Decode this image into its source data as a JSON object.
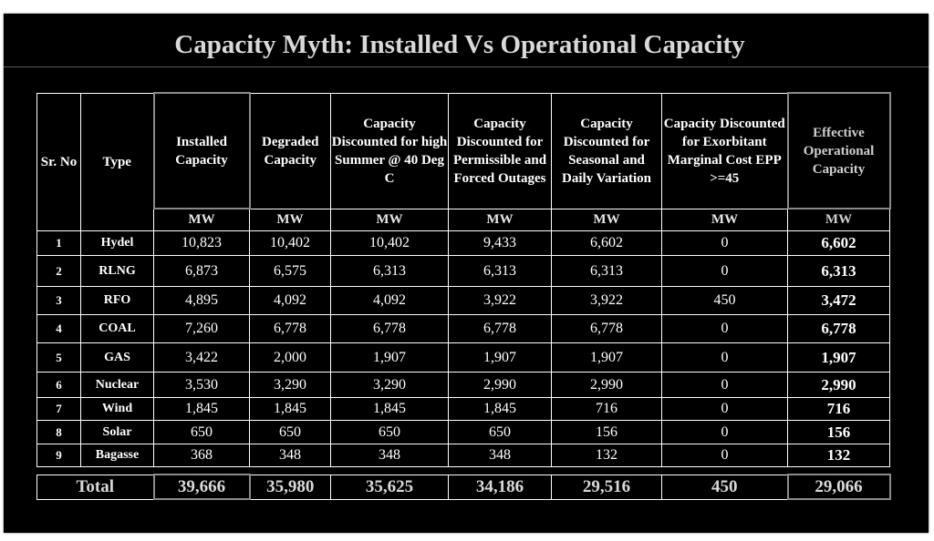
{
  "title": "Capacity Myth: Installed Vs Operational Capacity",
  "headers": {
    "sr": "Sr. No",
    "type": "Type",
    "installed": "Installed Capacity",
    "degraded": "Degraded Capacity",
    "summer": "Capacity Discounted for high Summer @ 40 Deg C",
    "outages": "Capacity Discounted for Permissible and Forced Outages",
    "seasonal": "Capacity Discounted for Seasonal and Daily Variation",
    "marginal": "Capacity Discounted for Exorbitant Marginal Cost EPP >=45",
    "effective": "Effective Operational Capacity"
  },
  "unit": "MW",
  "rows": [
    {
      "sn": "1",
      "type": "Hydel",
      "vals": [
        "10,823",
        "10,402",
        "10,402",
        "9,433",
        "6,602",
        "0",
        "6,602"
      ]
    },
    {
      "sn": "2",
      "type": "RLNG",
      "vals": [
        "6,873",
        "6,575",
        "6,313",
        "6,313",
        "6,313",
        "0",
        "6,313"
      ]
    },
    {
      "sn": "3",
      "type": "RFO",
      "vals": [
        "4,895",
        "4,092",
        "4,092",
        "3,922",
        "3,922",
        "450",
        "3,472"
      ]
    },
    {
      "sn": "4",
      "type": "COAL",
      "vals": [
        "7,260",
        "6,778",
        "6,778",
        "6,778",
        "6,778",
        "0",
        "6,778"
      ]
    },
    {
      "sn": "5",
      "type": "GAS",
      "vals": [
        "3,422",
        "2,000",
        "1,907",
        "1,907",
        "1,907",
        "0",
        "1,907"
      ]
    },
    {
      "sn": "6",
      "type": "Nuclear",
      "vals": [
        "3,530",
        "3,290",
        "3,290",
        "2,990",
        "2,990",
        "0",
        "2,990"
      ]
    },
    {
      "sn": "7",
      "type": "Wind",
      "vals": [
        "1,845",
        "1,845",
        "1,845",
        "1,845",
        "716",
        "0",
        "716"
      ]
    },
    {
      "sn": "8",
      "type": "Solar",
      "vals": [
        "650",
        "650",
        "650",
        "650",
        "156",
        "0",
        "156"
      ]
    },
    {
      "sn": "9",
      "type": "Bagasse",
      "vals": [
        "368",
        "348",
        "348",
        "348",
        "132",
        "0",
        "132"
      ]
    }
  ],
  "total": {
    "label": "Total",
    "vals": [
      "39,666",
      "35,980",
      "35,625",
      "34,186",
      "29,516",
      "450",
      "29,066"
    ]
  }
}
